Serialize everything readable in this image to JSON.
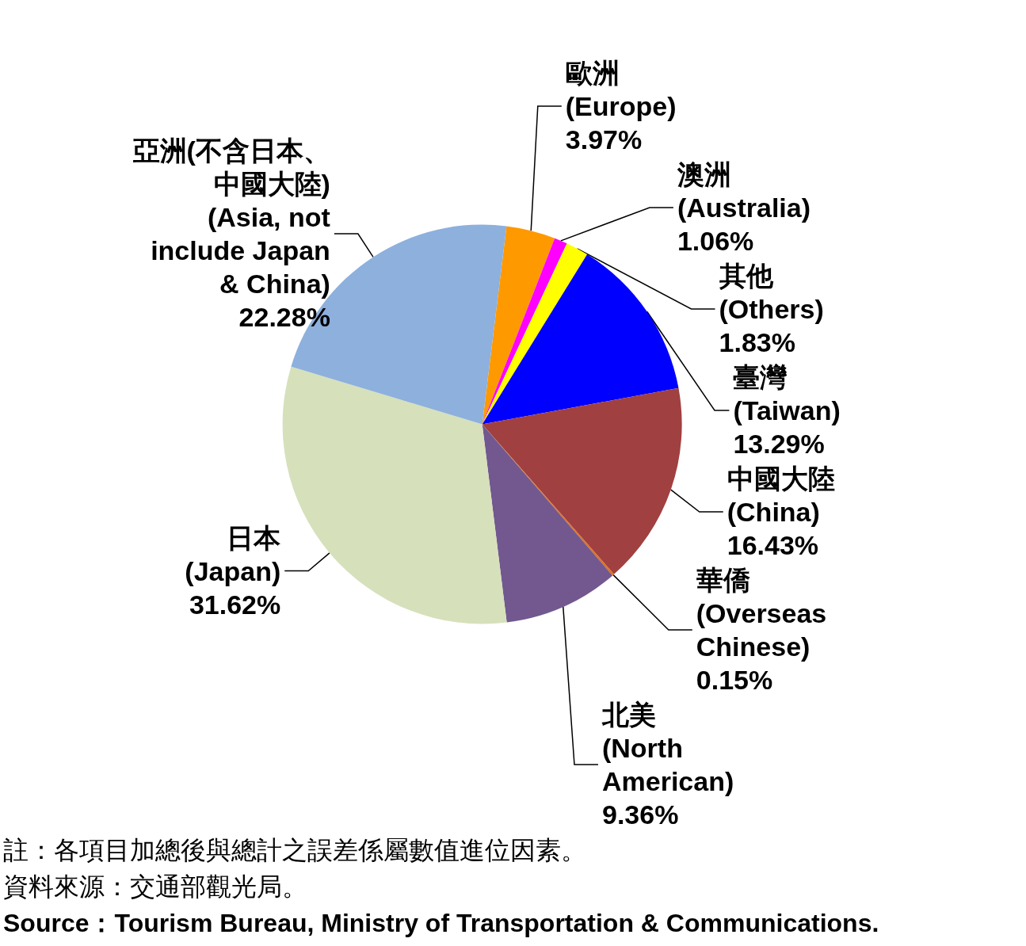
{
  "chart_data": {
    "type": "pie",
    "categories": [
      "歐洲\n(Europe)",
      "澳洲\n(Australia)",
      "其他\n(Others)",
      "臺灣\n(Taiwan)",
      "中國大陸\n(China)",
      "華僑\n(Overseas\nChinese)",
      "北美\n(North\nAmerican)",
      "日本\n(Japan)",
      "亞洲(不含日本、中國大陸)\n(Asia, not\ninclude Japan\n& China)"
    ],
    "values": [
      3.97,
      1.06,
      1.83,
      13.29,
      16.43,
      0.15,
      9.36,
      31.62,
      22.28
    ],
    "colors": [
      "#ff9900",
      "#ff00ff",
      "#ffff00",
      "#0000ff",
      "#a04040",
      "#e07020",
      "#72588f",
      "#d6e0bb",
      "#8db0dd"
    ],
    "value_labels": [
      "3.97%",
      "1.06%",
      "1.83%",
      "13.29%",
      "16.43%",
      "0.15%",
      "9.36%",
      "31.62%",
      "22.28%"
    ],
    "annotations": [
      "註：各項目加總後與總計之誤差係屬數值進位因素。",
      "資料來源：交通部觀光局。",
      "Source：Tourism Bureau, Ministry of Transportation & Communications."
    ]
  }
}
